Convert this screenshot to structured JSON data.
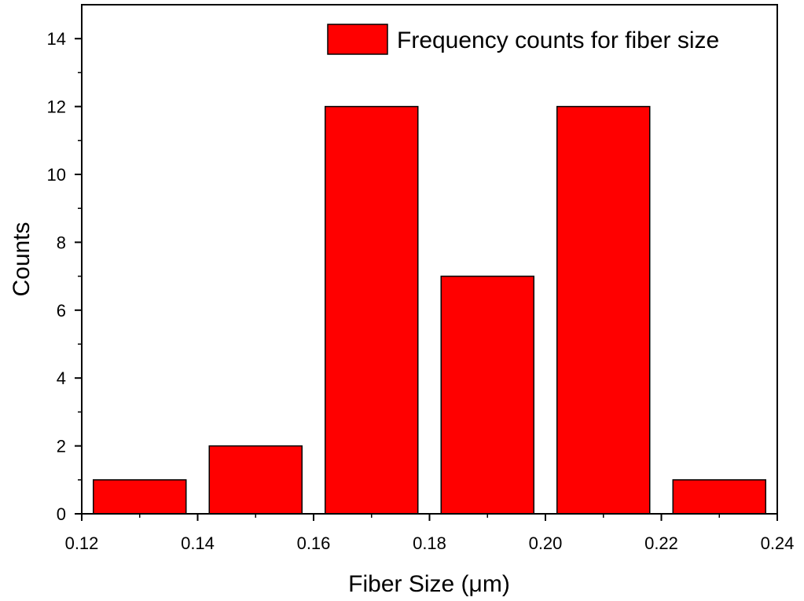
{
  "chart_data": {
    "type": "bar",
    "bins": [
      {
        "start": 0.122,
        "end": 0.138,
        "count": 1
      },
      {
        "start": 0.142,
        "end": 0.158,
        "count": 2
      },
      {
        "start": 0.162,
        "end": 0.178,
        "count": 12
      },
      {
        "start": 0.182,
        "end": 0.198,
        "count": 7
      },
      {
        "start": 0.202,
        "end": 0.218,
        "count": 12
      },
      {
        "start": 0.222,
        "end": 0.238,
        "count": 1
      }
    ],
    "xlabel": "Fiber Size (μm)",
    "ylabel": "Counts",
    "xlim": [
      0.12,
      0.24
    ],
    "ylim": [
      0,
      15
    ],
    "x_ticks": [
      "0.12",
      "0.14",
      "0.16",
      "0.18",
      "0.20",
      "0.22",
      "0.24"
    ],
    "y_ticks": [
      "0",
      "2",
      "4",
      "6",
      "8",
      "10",
      "12",
      "14"
    ],
    "legend": {
      "label": "Frequency counts for fiber size",
      "position": "top-right"
    },
    "bar_color": "#ff0000",
    "grid": false
  }
}
